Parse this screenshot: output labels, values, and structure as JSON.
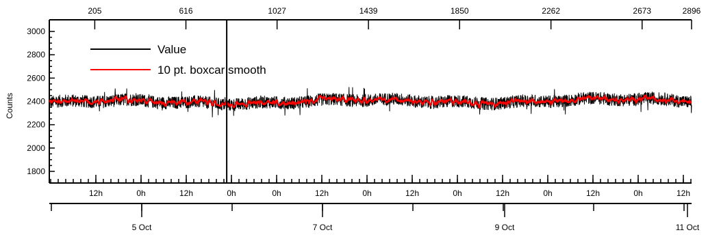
{
  "chart_data": {
    "type": "line",
    "ylabel": "Counts",
    "ylim": [
      1700,
      3100
    ],
    "y_ticks": [
      1800,
      2000,
      2200,
      2400,
      2600,
      2800,
      3000
    ],
    "top_axis": {
      "ticks": [
        "205",
        "616",
        "1027",
        "1439",
        "1850",
        "2262",
        "2673",
        "2896"
      ],
      "range": [
        0,
        2896
      ]
    },
    "x_axis": {
      "hour_labels": [
        "12h",
        "0h",
        "12h",
        "0h",
        "0h",
        "12h",
        "0h",
        "12h",
        "0h",
        "12h",
        "0h",
        "12h",
        "0h",
        "12h",
        "0h"
      ],
      "date_labels": [
        "5 Oct",
        "7 Oct",
        "9 Oct",
        "11 Oct"
      ]
    },
    "series": [
      {
        "name": "Value",
        "color": "#000000",
        "baseline": 2390,
        "noise": 55
      },
      {
        "name": "10 pt. boxcar smooth",
        "color": "#ff0000",
        "baseline": 2390,
        "noise": 18
      }
    ],
    "marker_line": {
      "position_index": 800
    },
    "legend": "top-left",
    "grid": false
  }
}
